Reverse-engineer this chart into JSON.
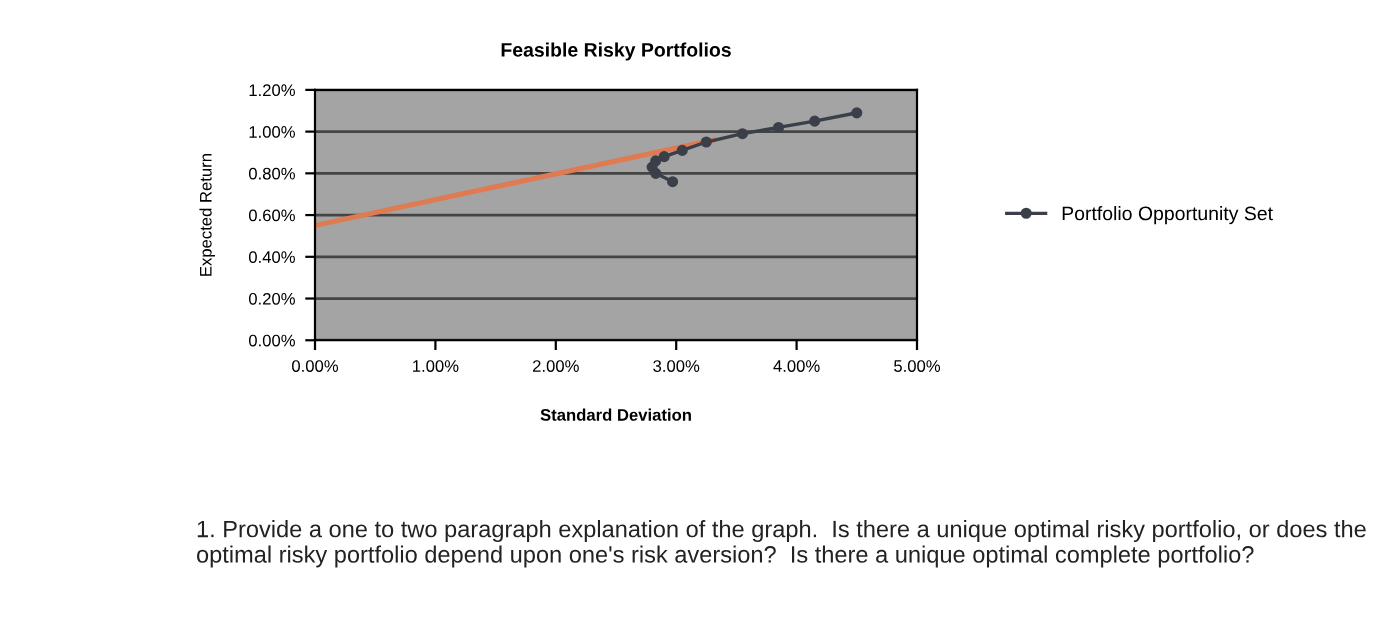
{
  "chart_data": {
    "type": "line",
    "title": "Feasible Risky Portfolios",
    "xlabel": "Standard Deviation",
    "ylabel": "Expected Return",
    "series": [
      {
        "name": "Portfolio Opportunity Set",
        "color": "#3a3f4a",
        "marker": "circle",
        "x": [
          2.97,
          2.83,
          2.8,
          2.83,
          2.9,
          3.05,
          3.25,
          3.55,
          3.85,
          4.15,
          4.5
        ],
        "values": [
          0.76,
          0.8,
          0.83,
          0.86,
          0.88,
          0.91,
          0.95,
          0.99,
          1.02,
          1.05,
          1.09
        ]
      },
      {
        "color": "#e07a50",
        "marker": "none",
        "x": [
          0,
          3.31
        ],
        "values": [
          0.55,
          0.96
        ]
      }
    ],
    "xlim": [
      0,
      5
    ],
    "ylim": [
      0,
      1.2
    ],
    "xticks": [
      {
        "value": 0,
        "label": "0.00%"
      },
      {
        "value": 1,
        "label": "1.00%"
      },
      {
        "value": 2,
        "label": "2.00%"
      },
      {
        "value": 3,
        "label": "3.00%"
      },
      {
        "value": 4,
        "label": "4.00%"
      },
      {
        "value": 5,
        "label": "5.00%"
      }
    ],
    "yticks": [
      {
        "value": 0,
        "label": "0.00%"
      },
      {
        "value": 0.2,
        "label": "0.20%"
      },
      {
        "value": 0.4,
        "label": "0.40%"
      },
      {
        "value": 0.6,
        "label": "0.60%"
      },
      {
        "value": 0.8,
        "label": "0.80%"
      },
      {
        "value": 1.0,
        "label": "1.00%"
      },
      {
        "value": 1.2,
        "label": "1.20%"
      }
    ],
    "grid": "y",
    "legend": "right",
    "annotations": [
      "1. Provide a one to two paragraph explanation of the graph.  Is there a unique optimal risky portfolio, or does the optimal risky portfolio depend upon one's risk aversion?  Is there a unique optimal complete portfolio?"
    ]
  }
}
